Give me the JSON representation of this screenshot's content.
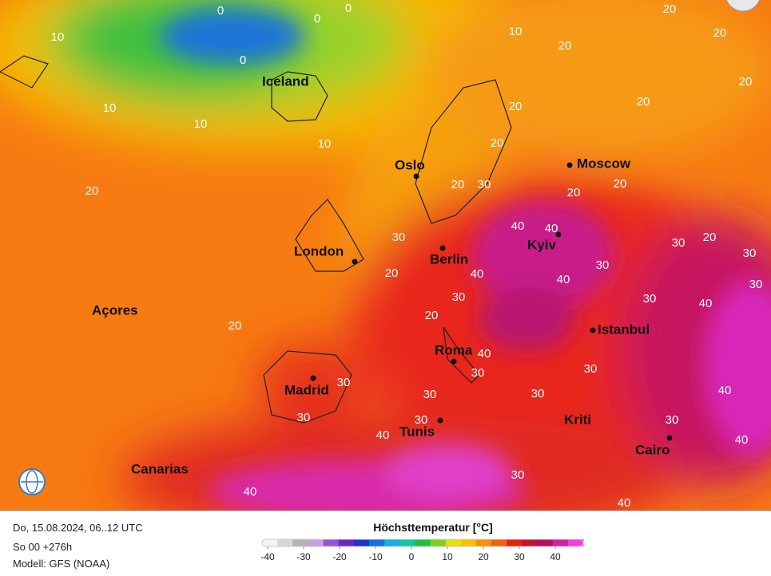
{
  "map": {
    "places": [
      "Iceland",
      "Oslo",
      "Moscow",
      "London",
      "Berlin",
      "Kyiv",
      "Açores",
      "Istanbul",
      "Madrid",
      "Roma",
      "Tunis",
      "Kriti",
      "Cairo",
      "Canarias"
    ],
    "contour_labels": [
      0,
      0,
      0,
      0,
      10,
      10,
      10,
      10,
      10,
      20,
      20,
      20,
      20,
      20,
      20,
      20,
      20,
      20,
      30,
      20,
      30,
      20,
      20,
      20,
      20,
      30,
      30,
      30,
      30,
      40,
      40,
      40,
      40,
      30,
      20,
      30,
      40,
      40,
      30,
      30,
      30,
      30,
      30,
      30,
      30,
      40,
      40,
      30,
      40,
      30,
      40,
      40
    ]
  },
  "footer": {
    "date": "Do, 15.08.2024, 06..12 UTC",
    "run": "So 00 +276h",
    "model": "Modell: GFS (NOAA)"
  },
  "legend": {
    "title": "Höchsttemperatur [°C]",
    "ticks": [
      -40,
      -30,
      -20,
      -10,
      0,
      10,
      20,
      30,
      40
    ],
    "colors": [
      "#f4f4f4",
      "#d8d8d8",
      "#b4b4b4",
      "#c8a0e0",
      "#9a50d0",
      "#6a28c0",
      "#2030d0",
      "#1070e0",
      "#10b0e0",
      "#10c8a0",
      "#20c040",
      "#80d020",
      "#e8e000",
      "#f8c000",
      "#f89000",
      "#f06010",
      "#e82010",
      "#c81030",
      "#b01060",
      "#d020a0",
      "#f040e0"
    ]
  }
}
